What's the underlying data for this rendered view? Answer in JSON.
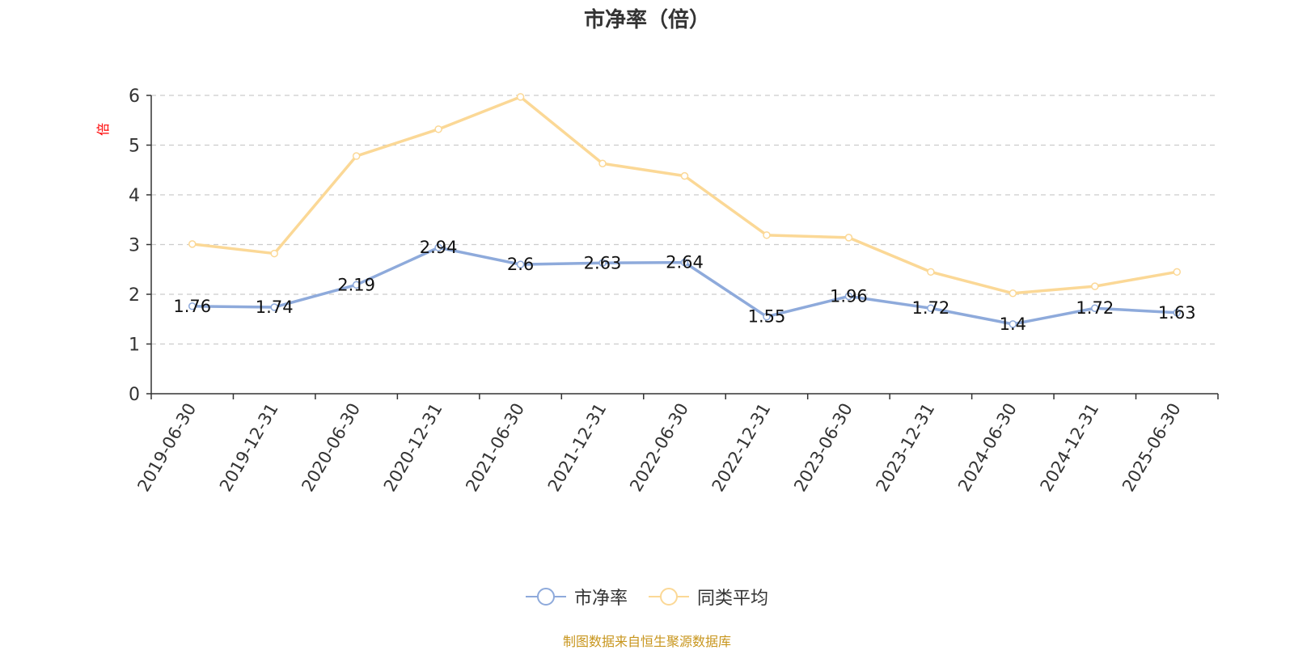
{
  "chart_data": {
    "type": "line",
    "title": "市净率（倍）",
    "ylabel": "倍",
    "x": [
      "2019-06-30",
      "2019-12-31",
      "2020-06-30",
      "2020-12-31",
      "2021-06-30",
      "2021-12-31",
      "2022-06-30",
      "2022-12-31",
      "2023-06-30",
      "2023-12-31",
      "2024-06-30",
      "2024-12-31",
      "2025-06-30"
    ],
    "ylim": [
      0,
      6
    ],
    "yticks": [
      0,
      1,
      2,
      3,
      4,
      5,
      6
    ],
    "grid": true,
    "legend_position": "bottom",
    "series": [
      {
        "name": "市净率",
        "color": "#8eaadb",
        "show_labels": true,
        "values": [
          1.76,
          1.74,
          2.19,
          2.94,
          2.6,
          2.63,
          2.64,
          1.55,
          1.96,
          1.72,
          1.4,
          1.72,
          1.63
        ]
      },
      {
        "name": "同类平均",
        "color": "#fbd896",
        "show_labels": false,
        "values": [
          3.01,
          2.82,
          4.78,
          5.32,
          5.97,
          4.63,
          4.38,
          3.19,
          3.14,
          2.45,
          2.02,
          2.16,
          2.45
        ]
      }
    ]
  },
  "source_note": "制图数据来自恒生聚源数据库"
}
